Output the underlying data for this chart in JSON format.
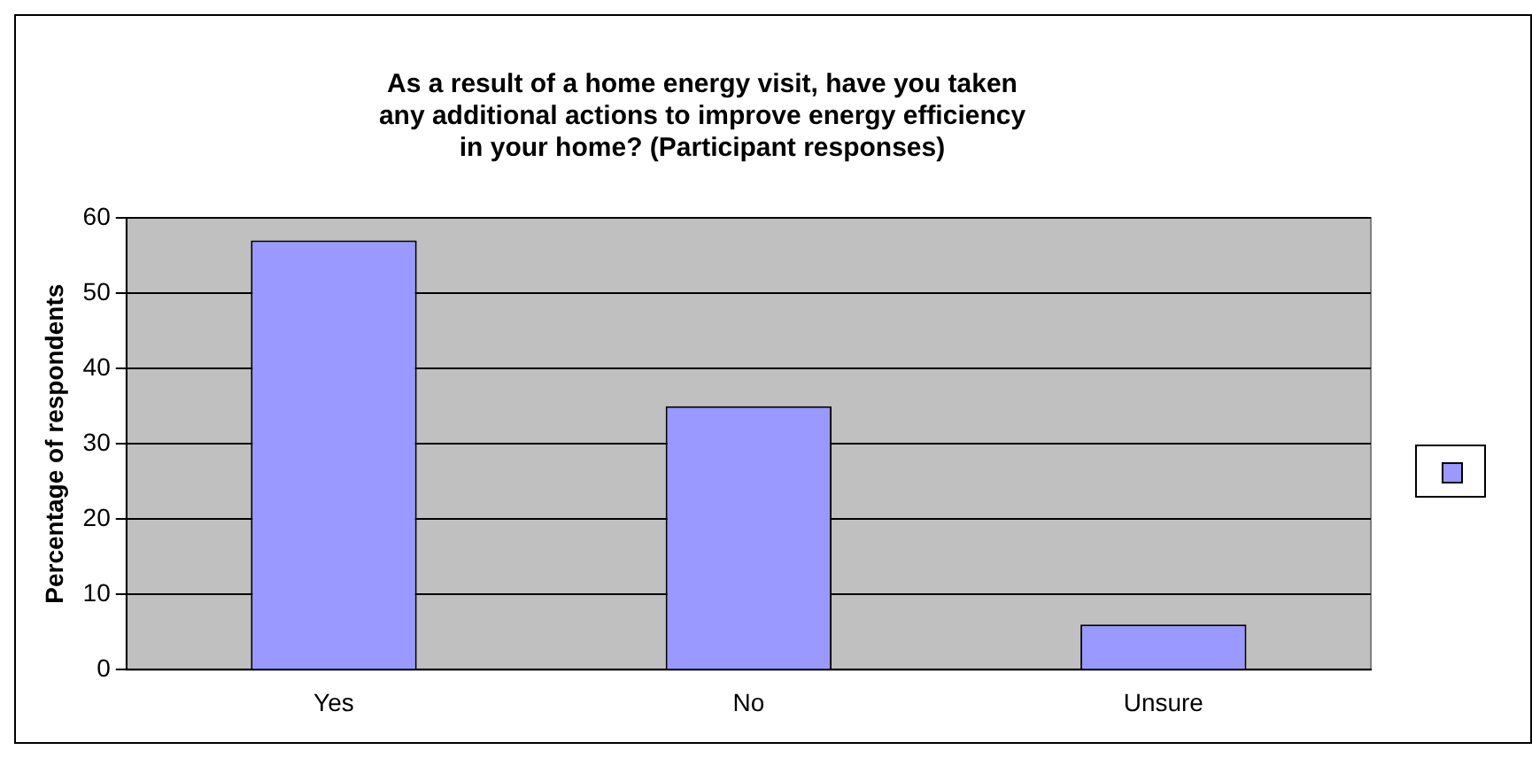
{
  "chart_data": {
    "type": "bar",
    "title": "As a result of a home energy visit, have you taken any additional actions to improve energy efficiency in your home? (Participant responses)",
    "ylabel": "Percentage of respondents",
    "categories": [
      "Yes",
      "No",
      "Unsure"
    ],
    "series": [
      {
        "color": "#9999ff",
        "values": [
          57,
          35,
          6
        ]
      }
    ],
    "ylim": [
      0,
      60
    ],
    "yticks": [
      0,
      10,
      20,
      30,
      40,
      50,
      60
    ],
    "grid": "y"
  }
}
